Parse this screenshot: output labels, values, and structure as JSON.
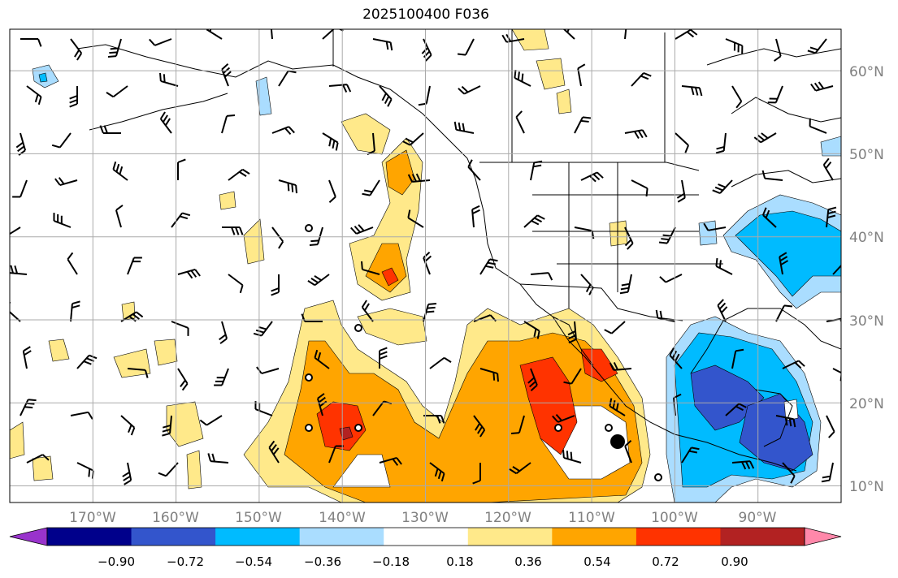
{
  "title": "2025100400 F036",
  "map": {
    "lon_range": [
      -180,
      -80
    ],
    "lat_range": [
      8,
      65
    ],
    "lat_ticks": [
      {
        "value": 60,
        "label": "60°N"
      },
      {
        "value": 50,
        "label": "50°N"
      },
      {
        "value": 40,
        "label": "40°N"
      },
      {
        "value": 30,
        "label": "30°N"
      },
      {
        "value": 20,
        "label": "20°N"
      },
      {
        "value": 10,
        "label": "10°N"
      }
    ],
    "lon_ticks": [
      {
        "value": -170,
        "label": "170°W"
      },
      {
        "value": -160,
        "label": "160°W"
      },
      {
        "value": -150,
        "label": "150°W"
      },
      {
        "value": -140,
        "label": "140°W"
      },
      {
        "value": -130,
        "label": "130°W"
      },
      {
        "value": -120,
        "label": "120°W"
      },
      {
        "value": -110,
        "label": "110°W"
      },
      {
        "value": -100,
        "label": "100°W"
      },
      {
        "value": -90,
        "label": "90°W"
      }
    ]
  },
  "colorbar": {
    "colors": [
      "#9933cc",
      "#00008b",
      "#3355cc",
      "#00bbff",
      "#aaddff",
      "#ffffff",
      "#ffe98a",
      "#ffa500",
      "#ff3300",
      "#b22222",
      "#ff88aa"
    ],
    "tick_labels": [
      "−0.90",
      "−0.72",
      "−0.54",
      "−0.36",
      "−0.18",
      "0.18",
      "0.36",
      "0.54",
      "0.72",
      "0.90"
    ]
  },
  "icons": [
    "wind-barb-icon",
    "station-circle-icon",
    "storm-marker-icon"
  ]
}
